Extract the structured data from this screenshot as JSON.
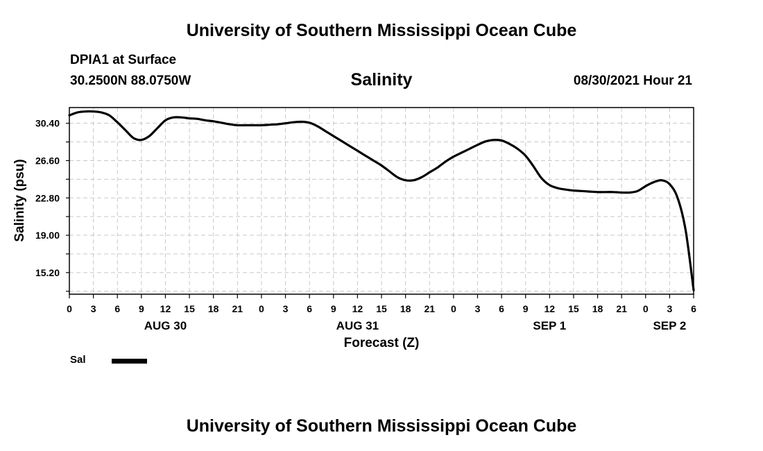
{
  "header": {
    "title": "University of Southern Mississippi Ocean Cube",
    "station": "DPIA1 at Surface",
    "coords": "30.2500N  88.0750W",
    "parameter": "Salinity",
    "datetime": "08/30/2021 Hour 21"
  },
  "footer": {
    "title": "University of Southern Mississippi Ocean Cube"
  },
  "legend": {
    "label": "Sal",
    "color": "#000000"
  },
  "chart_data": {
    "type": "line",
    "title": "Salinity",
    "xlabel": "Forecast (Z)",
    "ylabel": "Salinity (psu)",
    "ylim": [
      13.0,
      32.0
    ],
    "xlim": [
      0,
      78
    ],
    "y_ticks": [
      "15.20",
      "19.00",
      "22.80",
      "26.60",
      "30.40"
    ],
    "y_tick_values": [
      15.2,
      19.0,
      22.8,
      26.6,
      30.4
    ],
    "x_tick_hours": [
      0,
      3,
      6,
      9,
      12,
      15,
      18,
      21,
      24,
      27,
      30,
      33,
      36,
      39,
      42,
      45,
      48,
      51,
      54,
      57,
      60,
      63,
      66,
      69,
      72,
      75,
      78
    ],
    "x_tick_labels": [
      "0",
      "3",
      "6",
      "9",
      "12",
      "15",
      "18",
      "21",
      "0",
      "3",
      "6",
      "9",
      "12",
      "15",
      "18",
      "21",
      "0",
      "3",
      "6",
      "9",
      "12",
      "15",
      "18",
      "21",
      "0",
      "3",
      "6"
    ],
    "day_labels": [
      {
        "label": "AUG 30",
        "hour": 12
      },
      {
        "label": "AUG 31",
        "hour": 36
      },
      {
        "label": "SEP 1",
        "hour": 60
      },
      {
        "label": "SEP 2",
        "hour": 75
      }
    ],
    "grid": true,
    "series": [
      {
        "name": "Sal",
        "x": [
          0,
          1,
          2,
          3,
          4,
          5,
          6,
          7,
          8,
          9,
          10,
          11,
          12,
          13,
          14,
          15,
          16,
          17,
          18,
          19,
          20,
          21,
          22,
          23,
          24,
          25,
          26,
          27,
          28,
          29,
          30,
          31,
          32,
          33,
          34,
          35,
          36,
          37,
          38,
          39,
          40,
          41,
          42,
          43,
          44,
          45,
          46,
          47,
          48,
          49,
          50,
          51,
          52,
          53,
          54,
          55,
          56,
          57,
          58,
          59,
          60,
          61,
          62,
          63,
          64,
          65,
          66,
          67,
          68,
          69,
          70,
          71,
          72,
          73,
          74,
          75,
          76,
          77,
          78
        ],
        "values": [
          31.2,
          31.5,
          31.6,
          31.6,
          31.5,
          31.2,
          30.5,
          29.7,
          28.9,
          28.7,
          29.1,
          29.9,
          30.7,
          31.0,
          31.0,
          30.9,
          30.85,
          30.7,
          30.6,
          30.45,
          30.3,
          30.2,
          30.2,
          30.2,
          30.2,
          30.25,
          30.3,
          30.4,
          30.5,
          30.55,
          30.45,
          30.1,
          29.6,
          29.1,
          28.6,
          28.1,
          27.6,
          27.1,
          26.6,
          26.1,
          25.5,
          24.9,
          24.6,
          24.6,
          24.9,
          25.4,
          25.9,
          26.5,
          27.0,
          27.4,
          27.8,
          28.2,
          28.55,
          28.7,
          28.65,
          28.3,
          27.8,
          27.1,
          26.0,
          24.8,
          24.1,
          23.8,
          23.65,
          23.55,
          23.5,
          23.45,
          23.4,
          23.4,
          23.4,
          23.35,
          23.35,
          23.5,
          24.0,
          24.4,
          24.6,
          24.2,
          22.8,
          19.5,
          13.4
        ]
      }
    ]
  }
}
